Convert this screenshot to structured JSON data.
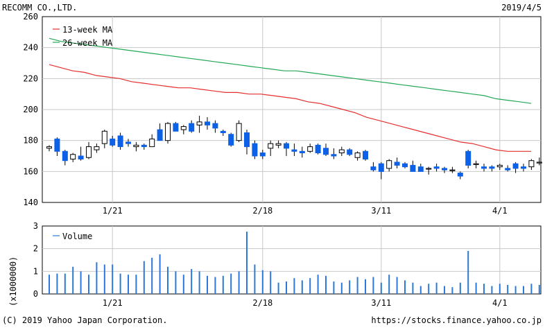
{
  "header": {
    "company": "RECOMM CO.,LTD.",
    "date": "2019/4/5"
  },
  "footer": {
    "copyright": "(C) 2019 Yahoo Japan Corporation.",
    "url": "https://stocks.finance.yahoo.co.jp"
  },
  "colors": {
    "up": "#ffffff",
    "down": "#0d61e6",
    "ma13": "#e62e2e",
    "ma26": "#22a855",
    "volume": "#2b78d6",
    "grid": "#c8c8c8"
  },
  "chart_data": [
    {
      "type": "candlestick",
      "ylim": [
        140,
        260
      ],
      "yticks": [
        140,
        160,
        180,
        200,
        220,
        240,
        260
      ],
      "xtick_labels": [
        {
          "label": "1/21",
          "index": 8
        },
        {
          "label": "2/18",
          "index": 27
        },
        {
          "label": "3/11",
          "index": 42
        },
        {
          "label": "4/1",
          "index": 57
        }
      ],
      "legend": [
        "13-week MA",
        "26-week MA"
      ],
      "candles": [
        [
          175,
          177,
          173,
          176
        ],
        [
          181,
          182,
          170,
          173
        ],
        [
          173,
          174,
          164,
          167
        ],
        [
          168,
          172,
          166,
          171
        ],
        [
          170,
          176,
          167,
          168
        ],
        [
          169,
          179,
          168,
          176
        ],
        [
          174,
          178,
          172,
          176
        ],
        [
          178,
          187,
          175,
          186
        ],
        [
          181,
          183,
          176,
          177
        ],
        [
          183,
          185,
          174,
          176
        ],
        [
          179,
          181,
          176,
          178
        ],
        [
          176,
          179,
          173,
          177
        ],
        [
          177,
          178,
          174,
          176
        ],
        [
          176,
          184,
          176,
          181
        ],
        [
          187,
          191,
          180,
          180
        ],
        [
          180,
          192,
          178,
          191
        ],
        [
          191,
          192,
          186,
          186
        ],
        [
          187,
          190,
          184,
          189
        ],
        [
          191,
          193,
          185,
          186
        ],
        [
          190,
          196,
          185,
          192
        ],
        [
          192,
          195,
          187,
          190
        ],
        [
          191,
          193,
          185,
          188
        ],
        [
          186,
          187,
          183,
          185
        ],
        [
          184,
          185,
          176,
          177
        ],
        [
          180,
          193,
          179,
          191
        ],
        [
          185,
          187,
          171,
          176
        ],
        [
          178,
          180,
          168,
          170
        ],
        [
          172,
          174,
          168,
          170
        ],
        [
          175,
          180,
          170,
          178
        ],
        [
          177,
          180,
          175,
          178
        ],
        [
          178,
          179,
          170,
          175
        ],
        [
          174,
          178,
          170,
          173
        ],
        [
          173,
          176,
          169,
          172
        ],
        [
          173,
          178,
          172,
          176
        ],
        [
          177,
          178,
          171,
          172
        ],
        [
          175,
          178,
          170,
          171
        ],
        [
          171,
          175,
          168,
          170
        ],
        [
          172,
          176,
          170,
          174
        ],
        [
          174,
          175,
          170,
          171
        ],
        [
          169,
          173,
          167,
          172
        ],
        [
          173,
          174,
          167,
          168
        ],
        [
          163,
          166,
          160,
          161
        ],
        [
          165,
          166,
          155,
          160
        ],
        [
          162,
          168,
          160,
          167
        ],
        [
          166,
          169,
          162,
          164
        ],
        [
          165,
          166,
          162,
          163
        ],
        [
          164,
          167,
          160,
          160
        ],
        [
          163,
          165,
          160,
          160
        ],
        [
          162,
          163,
          158,
          162
        ],
        [
          163,
          165,
          160,
          162
        ],
        [
          162,
          163,
          159,
          161
        ],
        [
          161,
          163,
          159,
          161
        ],
        [
          159,
          160,
          155,
          157
        ],
        [
          173,
          174,
          162,
          164
        ],
        [
          165,
          167,
          162,
          165
        ],
        [
          163,
          165,
          160,
          162
        ],
        [
          163,
          164,
          160,
          162
        ],
        [
          163,
          165,
          161,
          164
        ],
        [
          162,
          164,
          160,
          161
        ],
        [
          165,
          166,
          159,
          162
        ],
        [
          163,
          165,
          160,
          162
        ],
        [
          163,
          168,
          161,
          167
        ],
        [
          166,
          169,
          164,
          166
        ]
      ],
      "ma13": [
        229,
        227,
        225,
        224,
        222,
        221,
        220,
        218,
        217,
        216,
        215,
        214,
        214,
        213,
        212,
        211,
        211,
        210,
        210,
        209,
        208,
        207,
        205,
        204,
        202,
        200,
        198,
        195,
        193,
        191,
        189,
        187,
        185,
        183,
        181,
        179,
        178,
        176,
        174,
        173,
        173,
        173
      ],
      "ma26": [
        246,
        244,
        243,
        242,
        241,
        240,
        239,
        238,
        237,
        236,
        235,
        234,
        233,
        232,
        231,
        230,
        229,
        228,
        227,
        226,
        225,
        225,
        224,
        223,
        222,
        221,
        220,
        219,
        218,
        217,
        216,
        215,
        214,
        213,
        212,
        211,
        210,
        209,
        207,
        206,
        205,
        204
      ]
    },
    {
      "type": "bar",
      "ylabel": "(x1000000)",
      "ylim": [
        0,
        3
      ],
      "yticks": [
        0,
        1,
        2,
        3
      ],
      "legend": [
        "Volume"
      ],
      "values": [
        0.85,
        0.9,
        0.9,
        1.2,
        1.0,
        0.85,
        1.4,
        1.3,
        1.3,
        0.9,
        0.85,
        0.85,
        1.45,
        1.6,
        1.75,
        1.2,
        1.0,
        0.85,
        1.1,
        1.0,
        0.8,
        0.75,
        0.8,
        0.9,
        1.0,
        2.75,
        1.3,
        1.05,
        1.0,
        0.5,
        0.55,
        0.7,
        0.6,
        0.7,
        0.85,
        0.8,
        0.55,
        0.5,
        0.6,
        0.75,
        0.65,
        0.75,
        0.5,
        0.85,
        0.75,
        0.6,
        0.5,
        0.35,
        0.45,
        0.5,
        0.35,
        0.3,
        0.5,
        1.9,
        0.5,
        0.45,
        0.35,
        0.45,
        0.4,
        0.35,
        0.35,
        0.45,
        0.4
      ]
    }
  ]
}
